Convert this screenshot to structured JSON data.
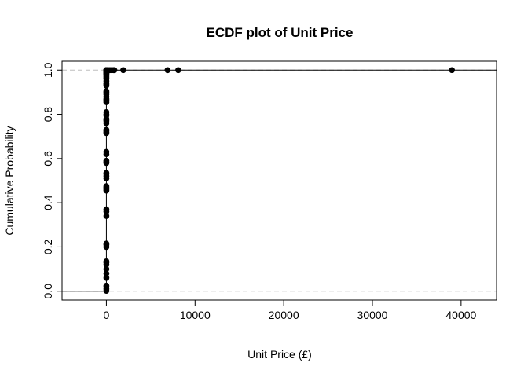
{
  "chart_data": {
    "type": "scatter",
    "subtype": "ecdf",
    "title": "ECDF plot of Unit Price",
    "xlabel": "Unit Price (£)",
    "ylabel": "Cumulative Probability",
    "xlim": [
      -5000,
      44000
    ],
    "ylim": [
      -0.04,
      1.04
    ],
    "xticks": [
      0,
      10000,
      20000,
      30000,
      40000
    ],
    "xtick_labels": [
      "0",
      "10000",
      "20000",
      "30000",
      "40000"
    ],
    "yticks": [
      0.0,
      0.2,
      0.4,
      0.6,
      0.8,
      1.0
    ],
    "ytick_labels": [
      "0.0",
      "0.2",
      "0.4",
      "0.6",
      "0.8",
      "1.0"
    ],
    "reference_lines": [
      0,
      1
    ],
    "grid": false,
    "point_color": "#000000",
    "reference_line_color": "#bebebe",
    "series": [
      {
        "x": [
          0,
          0,
          0,
          0,
          0,
          0,
          0,
          0,
          0,
          0,
          0,
          0,
          0,
          0,
          0,
          0,
          0,
          0,
          0,
          0,
          0,
          0,
          0,
          0,
          0,
          0,
          0,
          0,
          0,
          0,
          0,
          0,
          0,
          0,
          0,
          0,
          0,
          0,
          0,
          0,
          0,
          0,
          0,
          0,
          0,
          0,
          0,
          0,
          0,
          0,
          0,
          0,
          0,
          0,
          0,
          0,
          0,
          0,
          0,
          0,
          0,
          0,
          0,
          0,
          0,
          0,
          0,
          0,
          0,
          0,
          0,
          0,
          0,
          0,
          0,
          0,
          0,
          0,
          0,
          0,
          0,
          0,
          0,
          0,
          0,
          0,
          0,
          200,
          400,
          600,
          800,
          900,
          1900,
          6900,
          8100,
          38970
        ],
        "y": [
          0.002,
          0.01,
          0.02,
          0.025,
          0.06,
          0.08,
          0.1,
          0.12,
          0.13,
          0.135,
          0.2,
          0.21,
          0.215,
          0.34,
          0.36,
          0.37,
          0.455,
          0.46,
          0.465,
          0.47,
          0.475,
          0.51,
          0.52,
          0.53,
          0.535,
          0.58,
          0.585,
          0.59,
          0.62,
          0.63,
          0.715,
          0.72,
          0.725,
          0.73,
          0.76,
          0.77,
          0.775,
          0.78,
          0.795,
          0.8,
          0.81,
          0.855,
          0.86,
          0.865,
          0.87,
          0.88,
          0.89,
          0.895,
          0.9,
          0.905,
          0.93,
          0.935,
          0.94,
          0.95,
          0.96,
          0.965,
          0.97,
          0.975,
          0.98,
          0.983,
          0.985,
          0.987,
          0.989,
          0.991,
          0.993,
          0.995,
          0.9955,
          0.996,
          0.9963,
          0.9966,
          0.997,
          0.9973,
          0.9976,
          0.998,
          0.9982,
          0.9984,
          0.9986,
          0.9988,
          0.999,
          0.9991,
          0.9992,
          0.9993,
          0.9994,
          0.9995,
          0.9996,
          0.9997,
          0.99975,
          0.9998,
          0.99982,
          0.99984,
          0.99986,
          0.99988,
          0.9999,
          0.99993,
          0.99996,
          1.0
        ]
      }
    ]
  }
}
